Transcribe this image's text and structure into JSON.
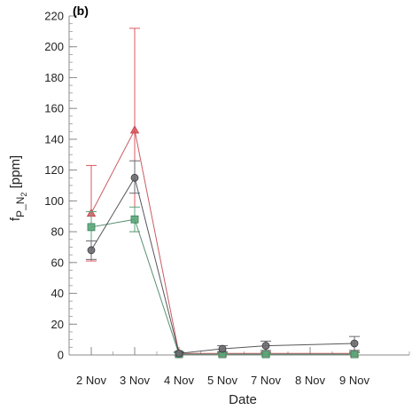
{
  "chart_data": {
    "type": "line",
    "panel_label": "(b)",
    "xlabel": "Date",
    "ylabel_parts": {
      "base": "f",
      "sub1": "P_N",
      "sub2": "2",
      "tail": " [ppm]"
    },
    "x_ticks": [
      "2 Nov",
      "3 Nov",
      "4 Nov",
      "5 Nov",
      "7 Nov",
      "8 Nov",
      "9 Nov"
    ],
    "ylim": [
      0,
      220
    ],
    "y_major_ticks": [
      0,
      20,
      40,
      60,
      80,
      100,
      120,
      140,
      160,
      180,
      200,
      220
    ],
    "y_minor_step": 5,
    "grid": false,
    "series": [
      {
        "marker": "triangle",
        "color": "#e0575f",
        "stroke": "#c04048",
        "points": [
          {
            "x": "2 Nov",
            "y": 92,
            "lo": 61,
            "hi": 123
          },
          {
            "x": "3 Nov",
            "y": 146,
            "lo": 80,
            "hi": 212
          },
          {
            "x": "4 Nov",
            "y": 1,
            "lo": 0,
            "hi": 2
          },
          {
            "x": "5 Nov",
            "y": 1,
            "lo": 0,
            "hi": 2
          },
          {
            "x": "7 Nov",
            "y": 1,
            "lo": 0,
            "hi": 2
          },
          {
            "x": "9 Nov",
            "y": 1,
            "lo": 0,
            "hi": 2
          }
        ]
      },
      {
        "marker": "square",
        "color": "#5aa77a",
        "stroke": "#3c7d58",
        "points": [
          {
            "x": "2 Nov",
            "y": 83,
            "lo": 74,
            "hi": 93
          },
          {
            "x": "3 Nov",
            "y": 88,
            "lo": 80,
            "hi": 96
          },
          {
            "x": "4 Nov",
            "y": 0.5,
            "lo": 0,
            "hi": 1.5
          },
          {
            "x": "5 Nov",
            "y": 0.5,
            "lo": 0,
            "hi": 1.5
          },
          {
            "x": "7 Nov",
            "y": 0.5,
            "lo": 0,
            "hi": 1.5
          },
          {
            "x": "9 Nov",
            "y": 0.5,
            "lo": 0,
            "hi": 1.5
          }
        ]
      },
      {
        "marker": "circle",
        "color": "#6a6a70",
        "stroke": "#3a3a40",
        "points": [
          {
            "x": "2 Nov",
            "y": 68,
            "lo": 62,
            "hi": 74
          },
          {
            "x": "3 Nov",
            "y": 115,
            "lo": 105,
            "hi": 126
          },
          {
            "x": "4 Nov",
            "y": 1,
            "lo": 0,
            "hi": 2
          },
          {
            "x": "5 Nov",
            "y": 4,
            "lo": 2,
            "hi": 6
          },
          {
            "x": "7 Nov",
            "y": 6,
            "lo": 3,
            "hi": 9
          },
          {
            "x": "9 Nov",
            "y": 7.5,
            "lo": 3,
            "hi": 12
          }
        ]
      }
    ]
  }
}
